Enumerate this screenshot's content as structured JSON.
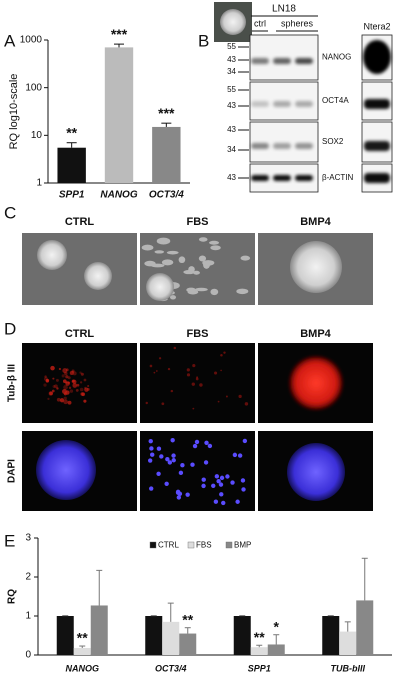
{
  "chart_data": [
    {
      "type": "bar",
      "panel": "A",
      "y_label": "RQ log10-scale",
      "log_scale": true,
      "categories": [
        "SPP1",
        "NANOG",
        "OCT3/4"
      ],
      "values": [
        5.5,
        700,
        15
      ],
      "errors": [
        1.5,
        120,
        3
      ],
      "colors": [
        "#111111",
        "#bbbbbb",
        "#888888"
      ],
      "significance": [
        "**",
        "***",
        "***"
      ],
      "ylim": [
        1,
        1000
      ],
      "yticks": [
        1,
        10,
        100,
        1000
      ]
    },
    {
      "type": "grouped_bar",
      "panel": "E",
      "y_label": "RQ",
      "categories": [
        "NANOG",
        "OCT3/4",
        "SPP1",
        "TUB-bIII"
      ],
      "series": [
        {
          "name": "CTRL",
          "color": "#111111",
          "values": [
            1,
            1,
            1,
            1
          ],
          "errors": [
            0.01,
            0.01,
            0.01,
            0.01
          ],
          "significance": [
            null,
            null,
            null,
            null
          ]
        },
        {
          "name": "FBS",
          "color": "#dddddd",
          "values": [
            0.18,
            0.85,
            0.2,
            0.6
          ],
          "errors": [
            0.05,
            0.48,
            0.05,
            0.25
          ],
          "significance": [
            "**",
            null,
            "**",
            null
          ]
        },
        {
          "name": "BMP",
          "color": "#888888",
          "values": [
            1.27,
            0.55,
            0.27,
            1.4
          ],
          "errors": [
            0.9,
            0.15,
            0.25,
            1.08
          ],
          "significance": [
            null,
            "**",
            "*",
            null
          ]
        }
      ],
      "ylim": [
        0,
        3
      ],
      "yticks": [
        0,
        1,
        2,
        3
      ],
      "legend": "top"
    }
  ],
  "blot": {
    "panel": "B",
    "cell_line": "LN18",
    "lanes": [
      "ctrl",
      "spheres"
    ],
    "control_line": "Ntera2",
    "rows": [
      {
        "label": "NANOG",
        "markers": [
          55,
          43,
          34
        ]
      },
      {
        "label": "OCT4A",
        "markers": [
          55,
          43
        ]
      },
      {
        "label": "SOX2",
        "markers": [
          43,
          34
        ]
      },
      {
        "label": "β-ACTIN",
        "markers": [
          43
        ]
      }
    ]
  },
  "micrographs_c": {
    "panel": "C",
    "conditions": [
      "CTRL",
      "FBS",
      "BMP4"
    ]
  },
  "micrographs_d": {
    "panel": "D",
    "conditions": [
      "CTRL",
      "FBS",
      "BMP4"
    ],
    "stains": [
      "Tub-β III",
      "DAPI"
    ]
  }
}
